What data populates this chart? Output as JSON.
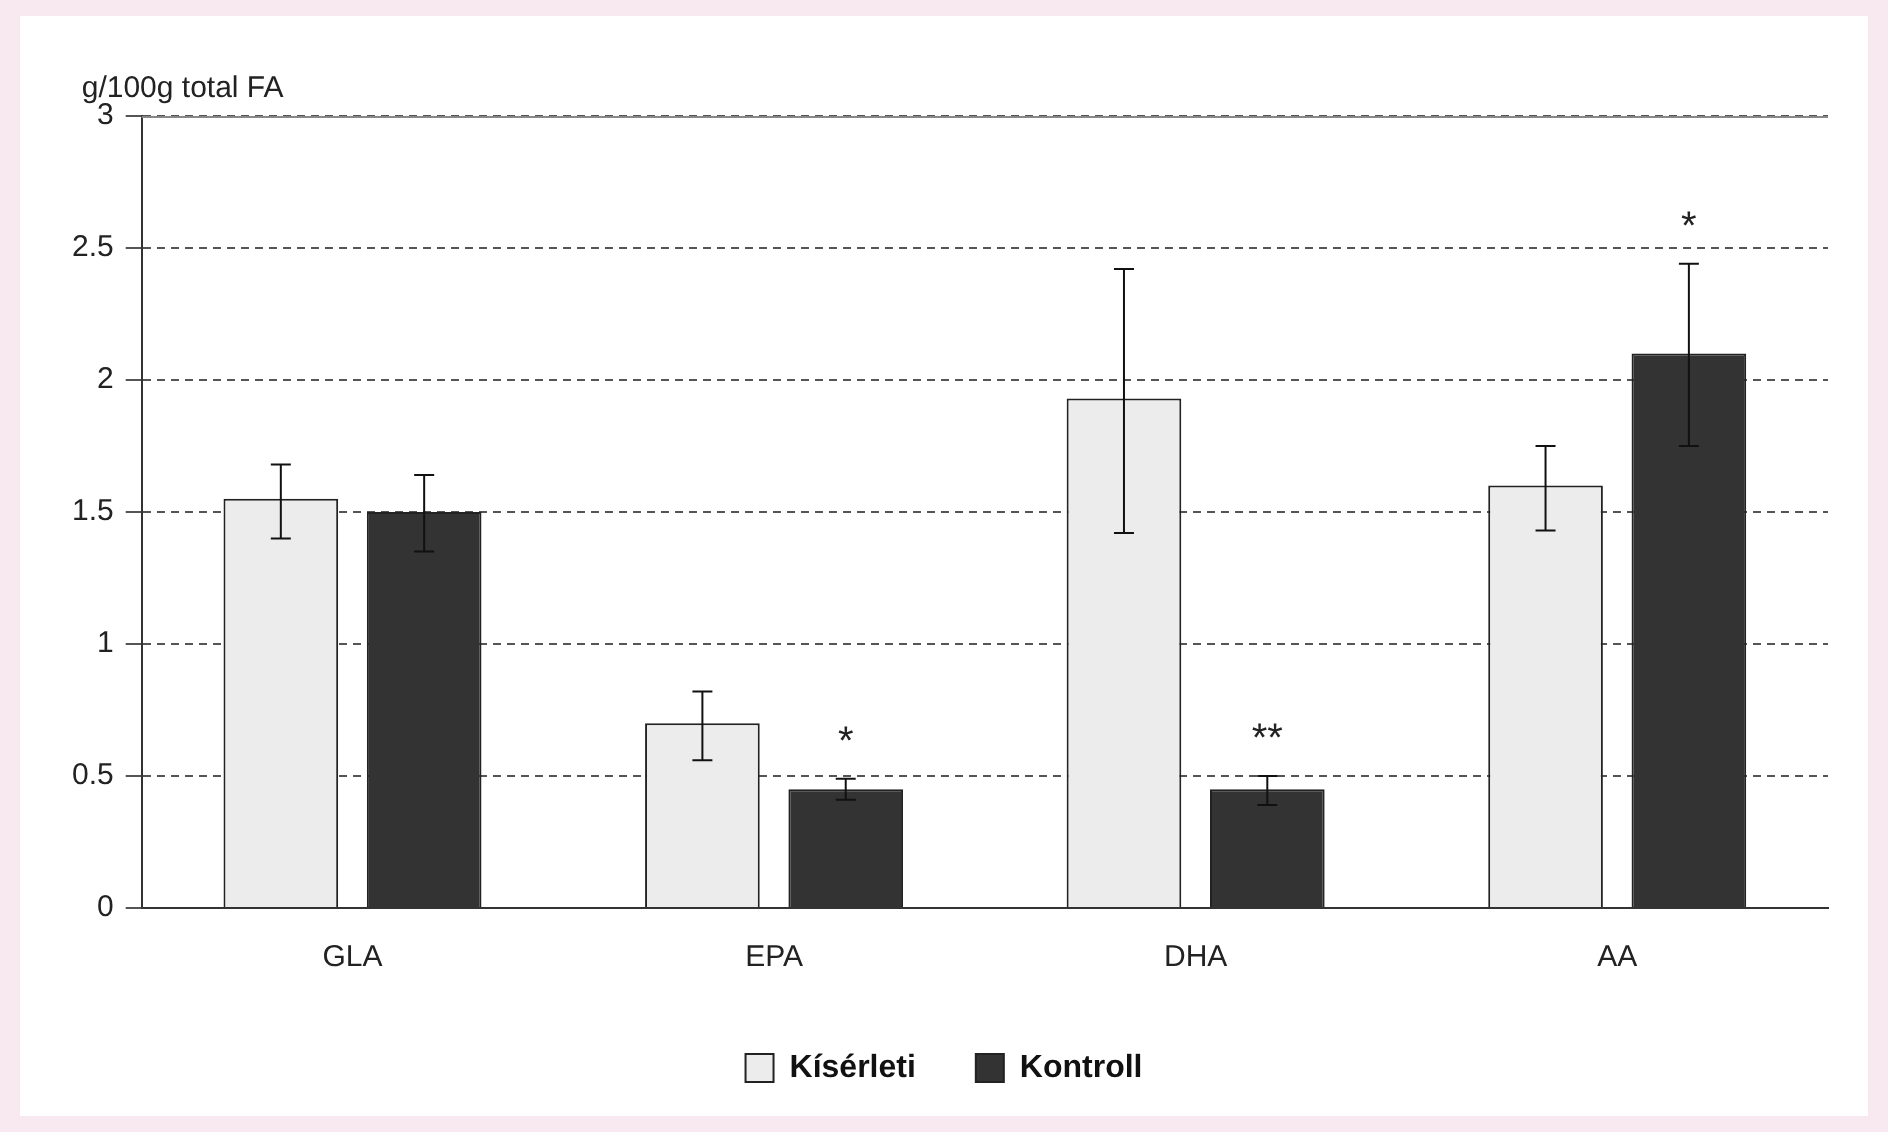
{
  "chart_data": {
    "type": "bar",
    "ylabel": "g/100g total FA",
    "categories": [
      "GLA",
      "EPA",
      "DHA",
      "AA"
    ],
    "series": [
      {
        "name": "Kísérleti",
        "color": "#ececec",
        "values": [
          1.55,
          0.7,
          1.93,
          1.6
        ],
        "errors": [
          [
            1.4,
            1.68
          ],
          [
            0.56,
            0.82
          ],
          [
            1.42,
            2.42
          ],
          [
            1.43,
            1.75
          ]
        ]
      },
      {
        "name": "Kontroll",
        "color": "#333333",
        "values": [
          1.5,
          0.45,
          0.45,
          2.1
        ],
        "errors": [
          [
            1.35,
            1.64
          ],
          [
            0.41,
            0.49
          ],
          [
            0.39,
            0.5
          ],
          [
            1.75,
            2.44
          ]
        ]
      }
    ],
    "ylim": [
      0,
      3
    ],
    "yticks": [
      0,
      0.5,
      1,
      1.5,
      2,
      2.5,
      3
    ],
    "grid": "y",
    "legend": "bottom",
    "annotations": [
      "*",
      "**",
      "*"
    ]
  }
}
